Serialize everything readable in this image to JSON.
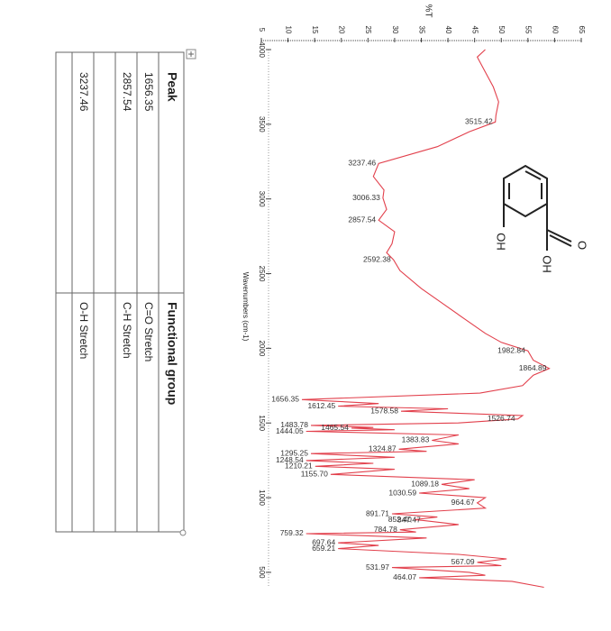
{
  "chart_data": {
    "type": "line",
    "y_label": "%T",
    "x_label": "Wavenumbers (cm-1)",
    "xlim": [
      4000,
      400
    ],
    "xticks": [
      4000,
      3500,
      3000,
      2500,
      2000,
      1500,
      1000,
      500
    ],
    "ylim": [
      5,
      65
    ],
    "yticks": [
      5,
      10,
      15,
      20,
      25,
      30,
      35,
      40,
      45,
      50,
      55,
      60,
      65
    ],
    "series": [
      {
        "color": "#e2404c",
        "x": [
          4000,
          3950,
          3850,
          3750,
          3650,
          3560,
          3515.42,
          3450,
          3350,
          3237.46,
          3150,
          3060,
          3006.33,
          2930,
          2857.54,
          2780,
          2700,
          2640,
          2592.38,
          2520,
          2400,
          2300,
          2200,
          2100,
          2040,
          1982.84,
          1920,
          1864.89,
          1820,
          1750,
          1700,
          1656.35,
          1630,
          1612.45,
          1595,
          1578.58,
          1550,
          1526.74,
          1500,
          1483.78,
          1470,
          1465.54,
          1455,
          1444.05,
          1420,
          1383.83,
          1360,
          1324.87,
          1310,
          1295.25,
          1270,
          1248.54,
          1230,
          1210.21,
          1190,
          1155.7,
          1120,
          1089.18,
          1060,
          1030.59,
          1000,
          964.67,
          930,
          891.71,
          870,
          852.4,
          847.47,
          820,
          784.78,
          770,
          759.32,
          730,
          697.64,
          680,
          659.21,
          620,
          590,
          567.09,
          545,
          531.97,
          500,
          480,
          464.07,
          440,
          400
        ],
        "values": [
          47,
          45.5,
          47,
          48.5,
          49.5,
          49,
          48.9,
          44,
          38,
          27,
          26,
          28,
          27.8,
          28.5,
          27,
          30,
          29.5,
          28.5,
          29.8,
          31,
          35,
          39,
          43,
          47,
          50,
          55,
          56,
          59,
          56,
          54,
          46,
          12.6,
          27,
          19.4,
          40,
          31.2,
          54,
          53.1,
          42,
          14.3,
          26,
          21.9,
          30,
          13.4,
          42,
          37,
          42,
          30.8,
          36,
          14.3,
          30,
          13.4,
          26,
          15.1,
          30,
          18,
          45,
          38.8,
          44,
          34.6,
          47,
          45.5,
          47,
          29.5,
          38,
          33.7,
          35.4,
          42,
          31,
          34,
          13.4,
          36,
          19.4,
          27,
          19.4,
          42,
          51,
          45.5,
          50,
          29.5,
          44,
          47,
          34.6,
          52,
          58
        ]
      }
    ],
    "annotations": [
      {
        "label": "3515.42",
        "x": 3515.42,
        "y": 48.9
      },
      {
        "label": "3237.46",
        "x": 3237.46,
        "y": 27
      },
      {
        "label": "3006.33",
        "x": 3006.33,
        "y": 27.8
      },
      {
        "label": "2857.54",
        "x": 2857.54,
        "y": 27
      },
      {
        "label": "2592.38",
        "x": 2592.38,
        "y": 29.8
      },
      {
        "label": "1982.84",
        "x": 1982.84,
        "y": 55
      },
      {
        "label": "1864.89",
        "x": 1864.89,
        "y": 59
      },
      {
        "label": "1656.35",
        "x": 1656.35,
        "y": 12.6
      },
      {
        "label": "1612.45",
        "x": 1612.45,
        "y": 19.4
      },
      {
        "label": "1578.58",
        "x": 1578.58,
        "y": 31.2
      },
      {
        "label": "1526.74",
        "x": 1526.74,
        "y": 53.1
      },
      {
        "label": "1483.78",
        "x": 1483.78,
        "y": 14.3
      },
      {
        "label": "1465.54",
        "x": 1465.54,
        "y": 21.9
      },
      {
        "label": "1444.05",
        "x": 1444.05,
        "y": 13.4
      },
      {
        "label": "1383.83",
        "x": 1383.83,
        "y": 37
      },
      {
        "label": "1324.87",
        "x": 1324.87,
        "y": 30.8
      },
      {
        "label": "1295.25",
        "x": 1295.25,
        "y": 14.3
      },
      {
        "label": "1248.54",
        "x": 1248.54,
        "y": 13.4
      },
      {
        "label": "1210.21",
        "x": 1210.21,
        "y": 15.1
      },
      {
        "label": "1155.70",
        "x": 1155.7,
        "y": 18
      },
      {
        "label": "1089.18",
        "x": 1089.18,
        "y": 38.8
      },
      {
        "label": "1030.59",
        "x": 1030.59,
        "y": 34.6
      },
      {
        "label": "964.67",
        "x": 964.67,
        "y": 45.5
      },
      {
        "label": "891.71",
        "x": 891.71,
        "y": 29.5
      },
      {
        "label": "852.40",
        "x": 852.4,
        "y": 33.7
      },
      {
        "label": "847.47",
        "x": 847.47,
        "y": 35.4
      },
      {
        "label": "784.78",
        "x": 784.78,
        "y": 31
      },
      {
        "label": "759.32",
        "x": 759.32,
        "y": 13.4
      },
      {
        "label": "697.64",
        "x": 697.64,
        "y": 19.4
      },
      {
        "label": "659.21",
        "x": 659.21,
        "y": 19.4
      },
      {
        "label": "567.09",
        "x": 567.09,
        "y": 45.5
      },
      {
        "label": "531.97",
        "x": 531.97,
        "y": 29.5
      },
      {
        "label": "464.07",
        "x": 464.07,
        "y": 34.6
      }
    ]
  },
  "molecule": {
    "labels": [
      "OH",
      "OH",
      "O"
    ]
  },
  "table": {
    "header": [
      "Peak",
      "Functional group"
    ],
    "rows": [
      [
        "1656.35",
        "C=O Stretch"
      ],
      [
        "2857.54",
        "C-H Stretch"
      ],
      [
        "3237.46",
        "O-H Stretch"
      ]
    ]
  }
}
